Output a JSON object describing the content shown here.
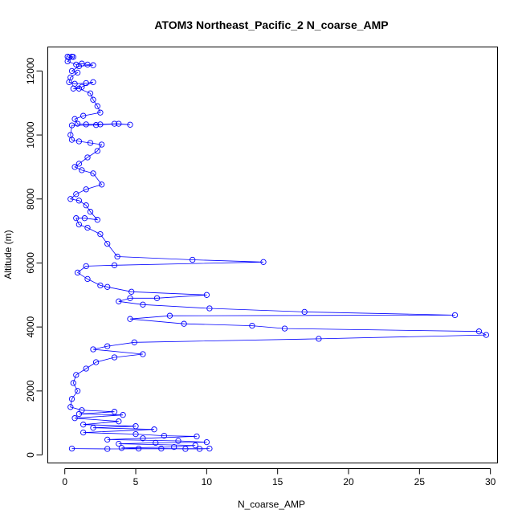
{
  "chart_data": {
    "type": "scatter",
    "title": "ATOM3 Northeast_Pacific_2 N_coarse_AMP",
    "xlabel": "N_coarse_AMP",
    "ylabel": "Altitude (m)",
    "xlim": [
      -1.2,
      30.5
    ],
    "ylim": [
      -250,
      12750
    ],
    "x_ticks": [
      0,
      5,
      10,
      15,
      20,
      25,
      30
    ],
    "y_ticks": [
      0,
      2000,
      4000,
      6000,
      8000,
      10000,
      12000
    ],
    "grid": false,
    "legend": "none",
    "marker": "open-circle",
    "line": true,
    "color": "#0000ff",
    "series": [
      {
        "values": [
          [
            0.2,
            12450
          ],
          [
            0.3,
            12420
          ],
          [
            0.5,
            12450
          ],
          [
            0.6,
            12440
          ],
          [
            0.2,
            12300
          ],
          [
            0.8,
            12200
          ],
          [
            1.2,
            12230
          ],
          [
            1.6,
            12200
          ],
          [
            2.0,
            12180
          ],
          [
            1.0,
            12150
          ],
          [
            0.5,
            12000
          ],
          [
            0.9,
            11950
          ],
          [
            0.4,
            11800
          ],
          [
            0.3,
            11650
          ],
          [
            0.7,
            11600
          ],
          [
            1.5,
            11620
          ],
          [
            2.0,
            11650
          ],
          [
            1.2,
            11500
          ],
          [
            0.6,
            11450
          ],
          [
            1.0,
            11450
          ],
          [
            1.8,
            11300
          ],
          [
            2.0,
            11100
          ],
          [
            2.3,
            10900
          ],
          [
            2.5,
            10700
          ],
          [
            1.3,
            10600
          ],
          [
            0.7,
            10500
          ],
          [
            0.9,
            10350
          ],
          [
            1.5,
            10330
          ],
          [
            2.5,
            10330
          ],
          [
            3.5,
            10350
          ],
          [
            4.6,
            10320
          ],
          [
            3.8,
            10350
          ],
          [
            2.2,
            10310
          ],
          [
            0.5,
            10300
          ],
          [
            0.4,
            10000
          ],
          [
            0.5,
            9850
          ],
          [
            1.0,
            9800
          ],
          [
            1.8,
            9750
          ],
          [
            2.6,
            9700
          ],
          [
            2.3,
            9500
          ],
          [
            1.6,
            9300
          ],
          [
            1.0,
            9100
          ],
          [
            0.7,
            9000
          ],
          [
            1.2,
            8900
          ],
          [
            2.0,
            8800
          ],
          [
            2.6,
            8450
          ],
          [
            1.5,
            8300
          ],
          [
            0.8,
            8150
          ],
          [
            0.4,
            8000
          ],
          [
            1.0,
            7950
          ],
          [
            1.5,
            7800
          ],
          [
            1.8,
            7600
          ],
          [
            2.3,
            7350
          ],
          [
            1.4,
            7400
          ],
          [
            0.8,
            7400
          ],
          [
            1.0,
            7200
          ],
          [
            1.6,
            7100
          ],
          [
            2.5,
            6900
          ],
          [
            3.0,
            6600
          ],
          [
            3.7,
            6200
          ],
          [
            9.0,
            6100
          ],
          [
            14.0,
            6030
          ],
          [
            3.5,
            5930
          ],
          [
            1.5,
            5900
          ],
          [
            0.9,
            5700
          ],
          [
            1.6,
            5500
          ],
          [
            2.5,
            5300
          ],
          [
            3.0,
            5250
          ],
          [
            4.7,
            5100
          ],
          [
            10.0,
            5000
          ],
          [
            6.5,
            4900
          ],
          [
            4.6,
            4900
          ],
          [
            3.8,
            4800
          ],
          [
            5.5,
            4700
          ],
          [
            10.2,
            4580
          ],
          [
            16.9,
            4470
          ],
          [
            27.5,
            4370
          ],
          [
            7.4,
            4350
          ],
          [
            4.6,
            4250
          ],
          [
            8.4,
            4100
          ],
          [
            13.2,
            4040
          ],
          [
            15.5,
            3950
          ],
          [
            29.2,
            3860
          ],
          [
            29.7,
            3750
          ],
          [
            17.9,
            3630
          ],
          [
            4.9,
            3520
          ],
          [
            3.0,
            3400
          ],
          [
            2.0,
            3300
          ],
          [
            5.5,
            3150
          ],
          [
            3.5,
            3050
          ],
          [
            2.2,
            2900
          ],
          [
            1.5,
            2700
          ],
          [
            0.8,
            2500
          ],
          [
            0.6,
            2250
          ],
          [
            0.9,
            2000
          ],
          [
            0.5,
            1750
          ],
          [
            0.4,
            1500
          ],
          [
            1.2,
            1400
          ],
          [
            3.5,
            1350
          ],
          [
            1.0,
            1280
          ],
          [
            4.1,
            1250
          ],
          [
            0.7,
            1150
          ],
          [
            3.8,
            1050
          ],
          [
            1.3,
            950
          ],
          [
            5.0,
            900
          ],
          [
            2.0,
            850
          ],
          [
            6.3,
            800
          ],
          [
            1.3,
            700
          ],
          [
            5.0,
            650
          ],
          [
            7.0,
            600
          ],
          [
            9.3,
            580
          ],
          [
            5.5,
            520
          ],
          [
            3.0,
            480
          ],
          [
            8.0,
            440
          ],
          [
            10.0,
            400
          ],
          [
            6.4,
            380
          ],
          [
            3.8,
            350
          ],
          [
            9.2,
            300
          ],
          [
            7.7,
            250
          ],
          [
            4.0,
            220
          ],
          [
            5.2,
            200
          ],
          [
            6.8,
            200
          ],
          [
            8.5,
            190
          ],
          [
            9.5,
            190
          ],
          [
            10.2,
            200
          ],
          [
            3.0,
            190
          ],
          [
            0.5,
            200
          ]
        ]
      }
    ]
  }
}
